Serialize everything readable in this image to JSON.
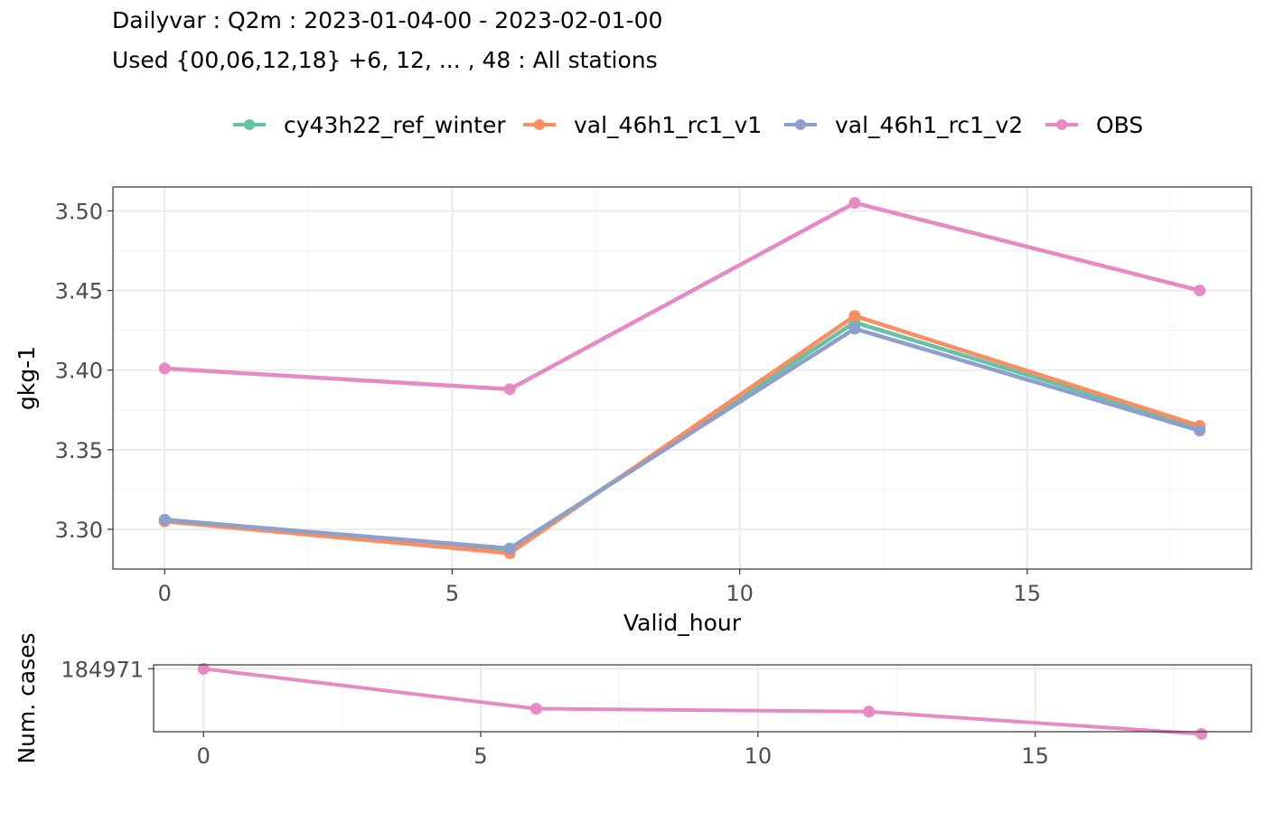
{
  "chart_data": [
    {
      "type": "line",
      "title": "Dailyvar : Q2m : 2023-01-04-00 - 2023-02-01-00",
      "subtitle": "Used {00,06,12,18} +6, 12, ... , 48 : All stations",
      "xlabel": "Valid_hour",
      "ylabel": "gkg-1",
      "x": [
        0,
        6,
        12,
        18
      ],
      "xlim": [
        -0.9,
        18.9
      ],
      "ylim": [
        3.275,
        3.515
      ],
      "xticks": [
        0,
        5,
        10,
        15
      ],
      "yticks": [
        3.3,
        3.35,
        3.4,
        3.45,
        3.5
      ],
      "ytick_labels": [
        "3.30",
        "3.35",
        "3.40",
        "3.45",
        "3.50"
      ],
      "grid": true,
      "legend": "top",
      "series": [
        {
          "name": "cy43h22_ref_winter",
          "color": "#66c2a5",
          "values": [
            3.306,
            3.287,
            3.43,
            3.364
          ]
        },
        {
          "name": "val_46h1_rc1_v1",
          "color": "#fc8d62",
          "values": [
            3.305,
            3.285,
            3.434,
            3.365
          ]
        },
        {
          "name": "val_46h1_rc1_v2",
          "color": "#8da0cb",
          "values": [
            3.306,
            3.288,
            3.426,
            3.362
          ]
        },
        {
          "name": "OBS",
          "color": "#e78ac3",
          "values": [
            3.401,
            3.388,
            3.505,
            3.45
          ]
        }
      ]
    },
    {
      "type": "line",
      "ylabel": "Num. cases",
      "x": [
        0,
        6,
        12,
        18
      ],
      "xlim": [
        -0.9,
        18.9
      ],
      "ylim": [
        176500,
        185500
      ],
      "xticks": [
        0,
        5,
        10,
        15
      ],
      "yticks": [
        184971
      ],
      "ytick_labels": [
        "184971"
      ],
      "grid": true,
      "series": [
        {
          "color": "#e78ac3",
          "values": [
            184971,
            179600,
            179200,
            176200
          ]
        }
      ]
    }
  ]
}
